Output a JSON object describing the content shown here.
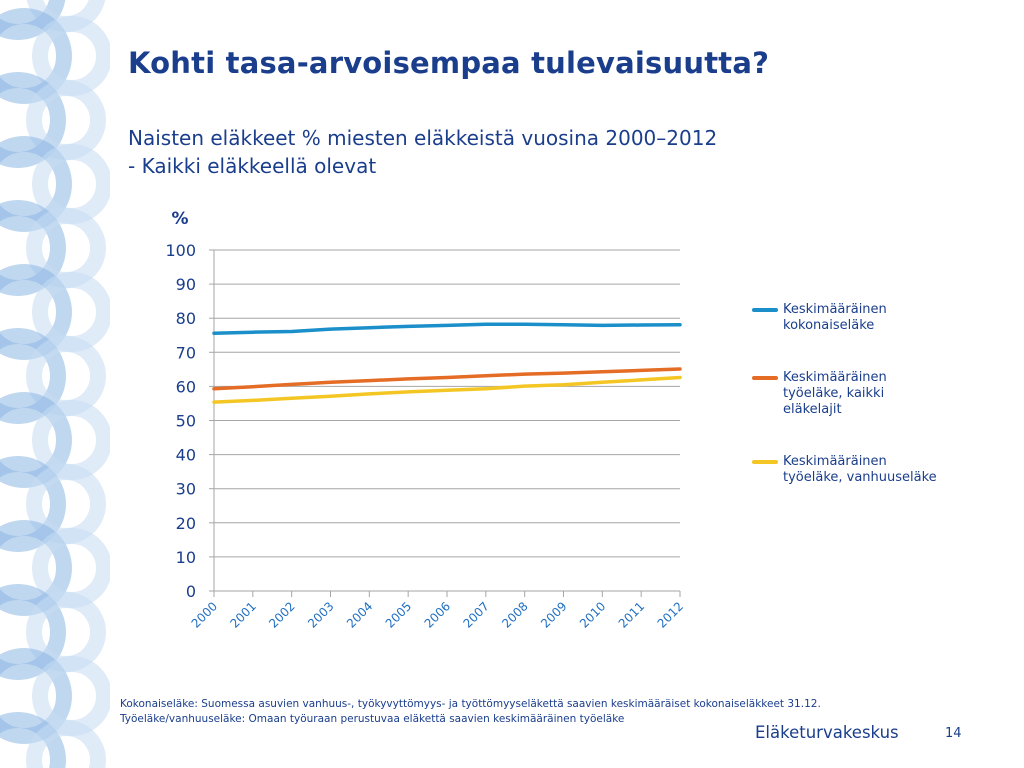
{
  "slide": {
    "title": "Kohti tasa-arvoisempaa tulevaisuutta?",
    "subtitle_lines": [
      "Naisten eläkkeet % miesten eläkkeistä vuosina 2000–2012",
      "- Kaikki eläkkeellä olevat"
    ],
    "footnote_lines": [
      "Kokonaiseläke: Suomessa asuvien vanhuus-, työkyvyttömyys- ja työttömyyseläkettä saavien keskimääräiset kokonaiseläkkeet 31.12.",
      "Työeläke/vanhuuseläke: Omaan työuraan perustuvaa eläkettä saavien keskimääräinen työeläke"
    ],
    "brand": "Eläketurvakeskus",
    "page_number": "14"
  },
  "colors": {
    "text": "#1a3e8c",
    "decor_circle": "#c5dcf3",
    "decor_circle_dark": "#8db6e3",
    "axis": "#a6a6a6",
    "tick_label": "#1a3e8c",
    "year_label": "#1f6fc2"
  },
  "chart_data": {
    "type": "line",
    "ylabel": "%",
    "xlabel": "",
    "ylim": [
      0,
      100
    ],
    "yticks": [
      0,
      10,
      20,
      30,
      40,
      50,
      60,
      70,
      80,
      90,
      100
    ],
    "grid": true,
    "legend_position": "right",
    "x": [
      "2000",
      "2001",
      "2002",
      "2003",
      "2004",
      "2005",
      "2006",
      "2007",
      "2008",
      "2009",
      "2010",
      "2011",
      "2012"
    ],
    "series": [
      {
        "name": "Keskimääräinen\nkokonaiseläke",
        "color": "#1a8fc9",
        "values": [
          75.6,
          75.9,
          76.1,
          76.8,
          77.2,
          77.6,
          77.9,
          78.2,
          78.2,
          78.1,
          77.9,
          78.0,
          78.1
        ]
      },
      {
        "name": "Keskimääräinen\ntyöeläke, kaikki\neläkelajit",
        "color": "#e46c25",
        "values": [
          59.3,
          59.9,
          60.6,
          61.2,
          61.7,
          62.2,
          62.6,
          63.1,
          63.6,
          63.9,
          64.3,
          64.7,
          65.1
        ]
      },
      {
        "name": "Keskimääräinen\ntyöeläke, vanhuuseläke",
        "color": "#f4c623",
        "values": [
          55.4,
          55.9,
          56.5,
          57.1,
          57.8,
          58.4,
          58.9,
          59.3,
          60.1,
          60.5,
          61.2,
          61.9,
          62.6
        ]
      }
    ]
  }
}
